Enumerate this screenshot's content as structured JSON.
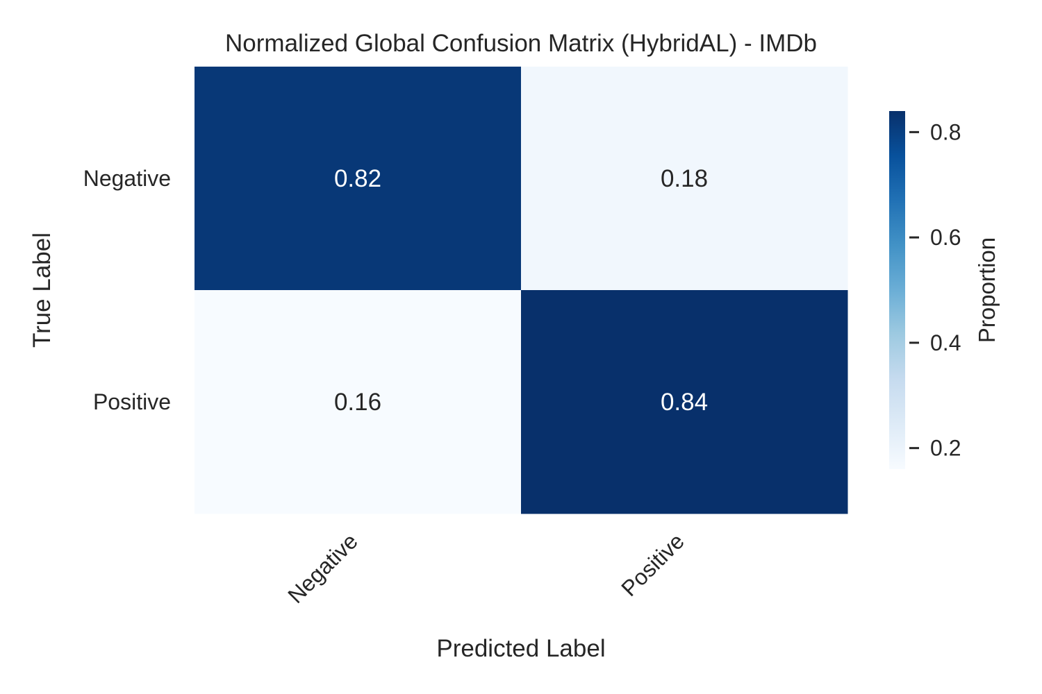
{
  "chart_data": {
    "type": "heatmap",
    "title": "Normalized Global Confusion Matrix (HybridAL) - IMDb",
    "xlabel": "Predicted Label",
    "ylabel": "True Label",
    "x_categories": [
      "Negative",
      "Positive"
    ],
    "y_categories": [
      "Negative",
      "Positive"
    ],
    "values": [
      [
        0.82,
        0.18
      ],
      [
        0.16,
        0.84
      ]
    ],
    "value_labels": [
      [
        "0.82",
        "0.18"
      ],
      [
        "0.16",
        "0.84"
      ]
    ],
    "colorbar": {
      "label": "Proportion",
      "vmin": 0.16,
      "vmax": 0.84,
      "ticks": [
        0.2,
        0.4,
        0.6,
        0.8
      ],
      "tick_labels": [
        "0.2",
        "0.4",
        "0.6",
        "0.8"
      ]
    },
    "colormap": "Blues",
    "colormap_stops": [
      "#f7fbff",
      "#deebf7",
      "#c6dbef",
      "#9ecae1",
      "#6baed6",
      "#4292c6",
      "#2171b5",
      "#08519c",
      "#08306b"
    ],
    "annotation_color_dark_cell": "#ffffff",
    "annotation_color_light_cell": "#262626"
  }
}
